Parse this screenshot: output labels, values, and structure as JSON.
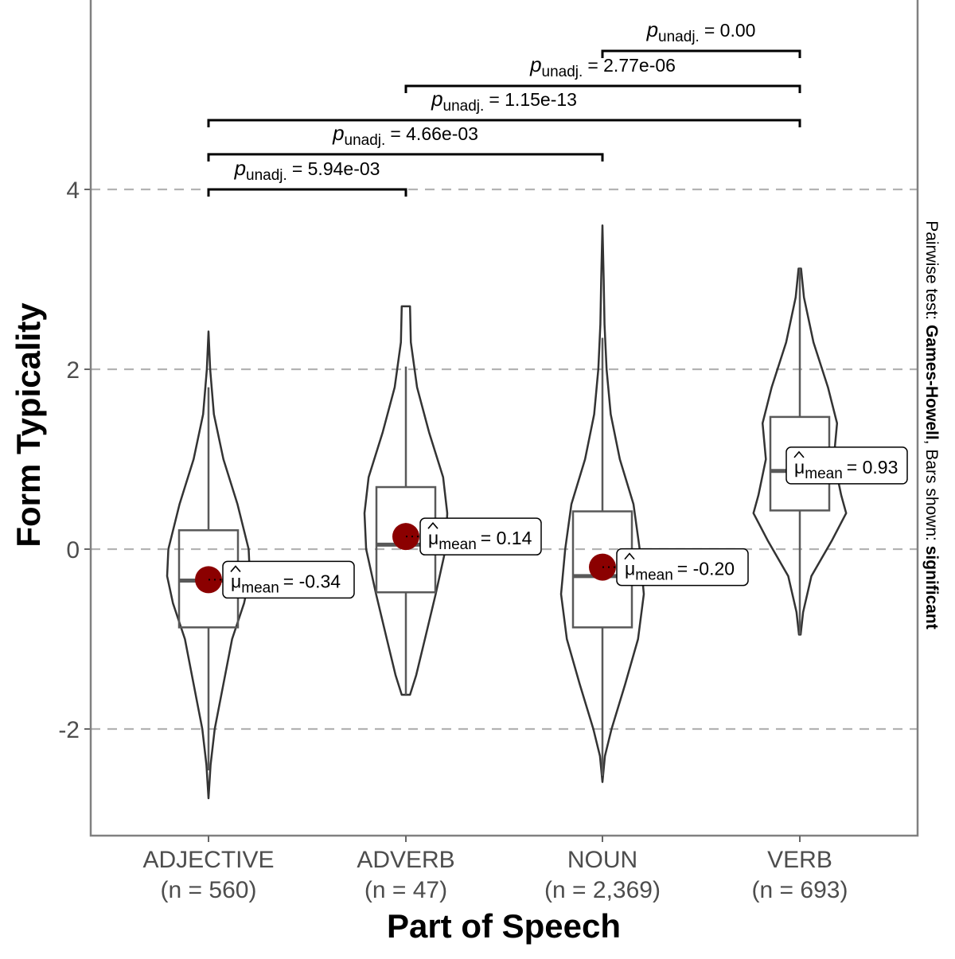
{
  "chart_data": {
    "type": "violin",
    "xlabel": "Part of Speech",
    "ylabel": "Form Typicality",
    "subtitle": {
      "prefix": "Pairwise test: ",
      "test": "Games-Howell",
      "middle": ", Bars shown: ",
      "shown": "significant"
    },
    "ylim": [
      -3.2,
      6.1
    ],
    "yticks": [
      -2,
      0,
      2,
      4
    ],
    "ytick_labels": [
      "-2",
      "0",
      "2",
      "4"
    ],
    "grid": "major-y dashed",
    "colors": {
      "mean_point": "#8b0000",
      "violin": "#333333",
      "box": "#595959",
      "grid": "#b3b3b3"
    },
    "categories": [
      {
        "name": "ADJECTIVE",
        "n_label": "(n = 560)",
        "mean": -0.34,
        "mean_label": "= -0.34",
        "box": {
          "q1": -0.87,
          "median": -0.35,
          "q3": 0.21,
          "whisker_low": -2.46,
          "whisker_high": 1.8
        },
        "density": [
          [
            2.42,
            0
          ],
          [
            2.0,
            0.04
          ],
          [
            1.5,
            0.13
          ],
          [
            1.0,
            0.36
          ],
          [
            0.5,
            0.7
          ],
          [
            0,
            0.97
          ],
          [
            -0.3,
            1
          ],
          [
            -0.6,
            0.86
          ],
          [
            -1.0,
            0.57
          ],
          [
            -1.5,
            0.36
          ],
          [
            -2.0,
            0.15
          ],
          [
            -2.4,
            0.05
          ],
          [
            -2.77,
            0
          ]
        ]
      },
      {
        "name": "ADVERB",
        "n_label": "(n = 47)",
        "mean": 0.14,
        "mean_label": "= 0.14",
        "box": {
          "q1": -0.48,
          "median": 0.05,
          "q3": 0.69,
          "whisker_low": -1.62,
          "whisker_high": 2.03
        },
        "density": [
          [
            2.7,
            0.1
          ],
          [
            2.3,
            0.12
          ],
          [
            1.8,
            0.27
          ],
          [
            1.3,
            0.56
          ],
          [
            0.8,
            0.9
          ],
          [
            0.4,
            1
          ],
          [
            0,
            0.96
          ],
          [
            -0.5,
            0.72
          ],
          [
            -1.0,
            0.46
          ],
          [
            -1.4,
            0.25
          ],
          [
            -1.62,
            0.1
          ]
        ]
      },
      {
        "name": "NOUN",
        "n_label": "(n = 2,369)",
        "mean": -0.2,
        "mean_label": "= -0.20",
        "box": {
          "q1": -0.87,
          "median": -0.3,
          "q3": 0.42,
          "whisker_low": -2.52,
          "whisker_high": 2.35
        },
        "density": [
          [
            3.6,
            0
          ],
          [
            3.0,
            0.03
          ],
          [
            2.5,
            0.05
          ],
          [
            2.0,
            0.1
          ],
          [
            1.5,
            0.2
          ],
          [
            1.0,
            0.42
          ],
          [
            0.5,
            0.75
          ],
          [
            0,
            0.9
          ],
          [
            -0.5,
            1
          ],
          [
            -1.0,
            0.86
          ],
          [
            -1.5,
            0.55
          ],
          [
            -2.0,
            0.22
          ],
          [
            -2.3,
            0.06
          ],
          [
            -2.59,
            0
          ]
        ]
      },
      {
        "name": "VERB",
        "n_label": "(n = 693)",
        "mean": 0.93,
        "mean_label": "= 0.93",
        "box": {
          "q1": 0.43,
          "median": 0.87,
          "q3": 1.47,
          "whisker_low": -0.95,
          "whisker_high": 3.12
        },
        "density": [
          [
            3.12,
            0.03
          ],
          [
            2.8,
            0.1
          ],
          [
            2.3,
            0.33
          ],
          [
            1.8,
            0.68
          ],
          [
            1.4,
            0.9
          ],
          [
            1.0,
            0.82
          ],
          [
            0.6,
            1.0
          ],
          [
            0.4,
            1.12
          ],
          [
            0.1,
            0.78
          ],
          [
            -0.3,
            0.28
          ],
          [
            -0.7,
            0.08
          ],
          [
            -0.95,
            0.02
          ]
        ]
      }
    ],
    "mean_symbol": "μ",
    "mean_sub": "mean",
    "p_symbol": "p",
    "p_sub": "unadj.",
    "comparisons": [
      {
        "from": 0,
        "to": 1,
        "y": 4.0,
        "label": "= 5.94e-03"
      },
      {
        "from": 0,
        "to": 2,
        "y": 4.39,
        "label": "= 4.66e-03"
      },
      {
        "from": 0,
        "to": 3,
        "y": 4.77,
        "label": "= 1.15e-13"
      },
      {
        "from": 1,
        "to": 3,
        "y": 5.15,
        "label": "= 2.77e-06"
      },
      {
        "from": 2,
        "to": 3,
        "y": 5.54,
        "label": "= 0.00"
      }
    ]
  }
}
